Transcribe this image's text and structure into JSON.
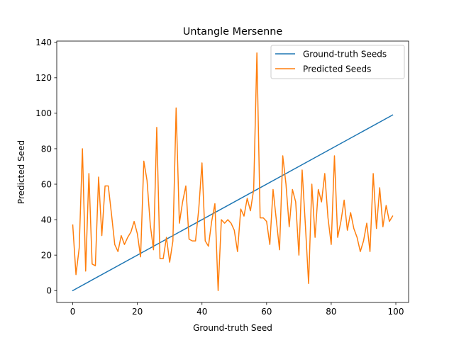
{
  "chart_data": {
    "type": "line",
    "title": "Untangle Mersenne",
    "xlabel": "Ground-truth Seed",
    "ylabel": "Predicted Seed",
    "xlim": [
      -4.95,
      103.95
    ],
    "ylim": [
      -6.7,
      140.7
    ],
    "xticks": [
      0,
      20,
      40,
      60,
      80,
      100
    ],
    "yticks": [
      0,
      20,
      40,
      60,
      80,
      100,
      120,
      140
    ],
    "grid": false,
    "legend": "top-right",
    "series": [
      {
        "name": "Ground-truth Seeds",
        "color": "#1f77b4",
        "x": [
          0,
          99
        ],
        "y": [
          0,
          99
        ]
      },
      {
        "name": "Predicted Seeds",
        "color": "#ff7f0e",
        "x": [
          0,
          1,
          2,
          3,
          4,
          5,
          6,
          7,
          8,
          9,
          10,
          11,
          12,
          13,
          14,
          15,
          16,
          17,
          18,
          19,
          20,
          21,
          22,
          23,
          24,
          25,
          26,
          27,
          28,
          29,
          30,
          31,
          32,
          33,
          34,
          35,
          36,
          37,
          38,
          39,
          40,
          41,
          42,
          43,
          44,
          45,
          46,
          47,
          48,
          49,
          50,
          51,
          52,
          53,
          54,
          55,
          56,
          57,
          58,
          59,
          60,
          61,
          62,
          63,
          64,
          65,
          66,
          67,
          68,
          69,
          70,
          71,
          72,
          73,
          74,
          75,
          76,
          77,
          78,
          79,
          80,
          81,
          82,
          83,
          84,
          85,
          86,
          87,
          88,
          89,
          90,
          91,
          92,
          93,
          94,
          95,
          96,
          97,
          98,
          99
        ],
        "y": [
          37,
          9,
          24,
          80,
          11,
          66,
          15,
          14,
          64,
          31,
          59,
          59,
          43,
          26,
          22,
          31,
          26,
          30,
          33,
          39,
          32,
          19,
          73,
          62,
          37,
          23,
          92,
          18,
          18,
          30,
          16,
          28,
          103,
          38,
          50,
          59,
          29,
          28,
          28,
          46,
          72,
          28,
          25,
          39,
          49,
          0,
          40,
          38,
          40,
          38,
          34,
          22,
          46,
          42,
          52,
          45,
          57,
          134,
          41,
          41,
          39,
          26,
          57,
          40,
          23,
          76,
          60,
          36,
          57,
          50,
          20,
          68,
          37,
          4,
          60,
          30,
          57,
          50,
          66,
          41,
          26,
          76,
          30,
          39,
          51,
          34,
          44,
          35,
          30,
          22,
          28,
          38,
          22,
          66,
          35,
          58,
          36,
          48,
          39,
          42
        ]
      }
    ]
  }
}
